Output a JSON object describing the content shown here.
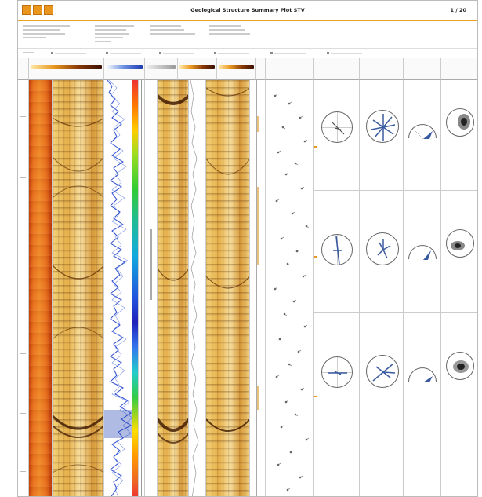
{
  "header": {
    "title": "Geological Structure Summary Plot STV",
    "page_num": "1 / 20"
  },
  "colors": {
    "accent": "#e8961e",
    "core": "#e8701e",
    "image": "#e6b04a",
    "blue": "#2a4bd0"
  },
  "icons": [
    "logo-icon",
    "logo-icon",
    "logo-icon"
  ]
}
